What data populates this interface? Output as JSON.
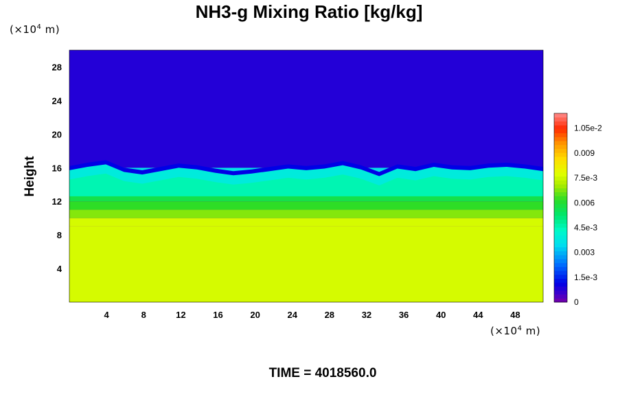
{
  "chart_data": {
    "type": "heatmap",
    "title": "NH3-g Mixing Ratio [kg/kg]",
    "ylabel": "Height",
    "x_unit_prefix": "(×10",
    "x_unit_exp": "4",
    "x_unit_suffix": " m)",
    "y_unit_prefix": "(×10",
    "y_unit_exp": "4",
    "y_unit_suffix": " m)",
    "xlim": [
      0,
      51
    ],
    "ylim": [
      0,
      30
    ],
    "x_ticks": [
      4,
      8,
      12,
      16,
      20,
      24,
      28,
      32,
      36,
      40,
      44,
      48
    ],
    "y_ticks": [
      4,
      8,
      12,
      16,
      20,
      24,
      28
    ],
    "colorbar": {
      "range": [
        0,
        0.0114
      ],
      "tick_values": [
        0,
        0.0015,
        0.003,
        0.0045,
        0.006,
        0.0075,
        0.009,
        0.0105
      ],
      "tick_labels": [
        "0",
        "1.5e-3",
        "0.003",
        "4.5e-3",
        "0.006",
        "7.5e-3",
        "0.009",
        "1.05e-2"
      ]
    },
    "profile": [
      {
        "height": 0,
        "value": 0.0076
      },
      {
        "height": 9,
        "value": 0.0076
      },
      {
        "height": 10,
        "value": 0.0068
      },
      {
        "height": 11,
        "value": 0.0062
      },
      {
        "height": 12,
        "value": 0.0057
      },
      {
        "height": 13,
        "value": 0.0048
      },
      {
        "height": 14,
        "value": 0.0041
      },
      {
        "height": 15,
        "value": 0.0036
      },
      {
        "height": 16,
        "value": 0.0008
      },
      {
        "height": 30,
        "value": 0.0
      }
    ],
    "boundary_height": [
      16.2,
      16.6,
      16.9,
      16.0,
      15.7,
      16.1,
      16.5,
      16.3,
      15.9,
      15.6,
      15.8,
      16.1,
      16.4,
      16.2,
      16.4,
      16.8,
      16.3,
      15.5,
      16.4,
      16.1,
      16.6,
      16.3,
      16.2,
      16.5,
      16.6,
      16.4,
      16.1
    ],
    "time_label": "TIME = 4018560.0"
  }
}
